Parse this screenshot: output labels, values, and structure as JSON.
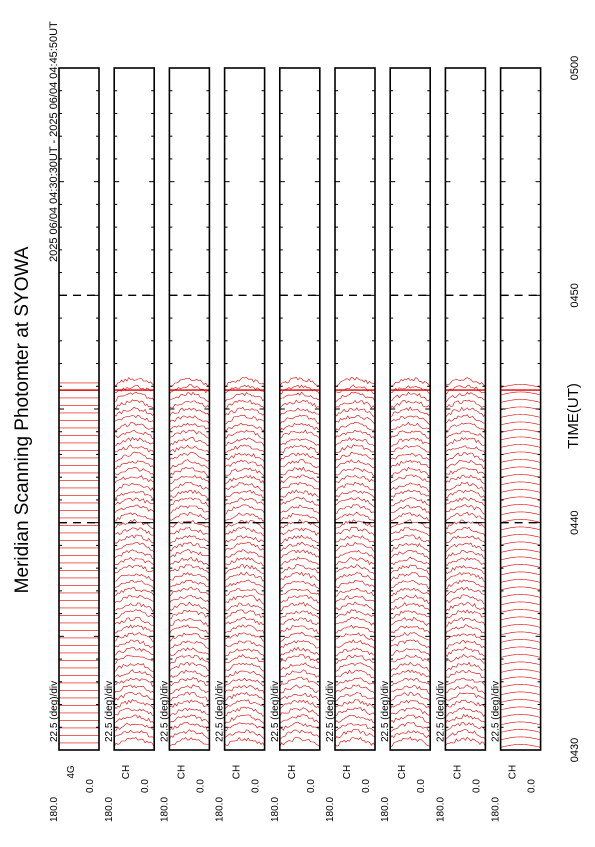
{
  "chart_data": {
    "type": "line",
    "title": "Meridian Scanning Photomter at SYOWA",
    "subtitle": "2025 06/04 04:30:30UT - 2025 06/04 04:45:50UT",
    "xlabel": "TIME(UT)",
    "time_ticks": [
      "0430",
      "0440",
      "0450",
      "0500"
    ],
    "xlim": [
      "04:30",
      "05:00"
    ],
    "data_end": "04:45:50",
    "scale_label": "22.5 (deg)/div",
    "angle_labels": [
      "180.0",
      "0.0"
    ],
    "panels": [
      {
        "label": "4G",
        "kind": "saturated"
      },
      {
        "label": "CH",
        "kind": "profile"
      },
      {
        "label": "CH",
        "kind": "profile"
      },
      {
        "label": "CH",
        "kind": "profile"
      },
      {
        "label": "CH",
        "kind": "profile"
      },
      {
        "label": "CH",
        "kind": "profile"
      },
      {
        "label": "CH",
        "kind": "profile"
      },
      {
        "label": "CH",
        "kind": "profile"
      },
      {
        "label": "CH",
        "kind": "flat"
      }
    ],
    "colors": {
      "trace": "#e00000",
      "axis": "#000000"
    }
  }
}
